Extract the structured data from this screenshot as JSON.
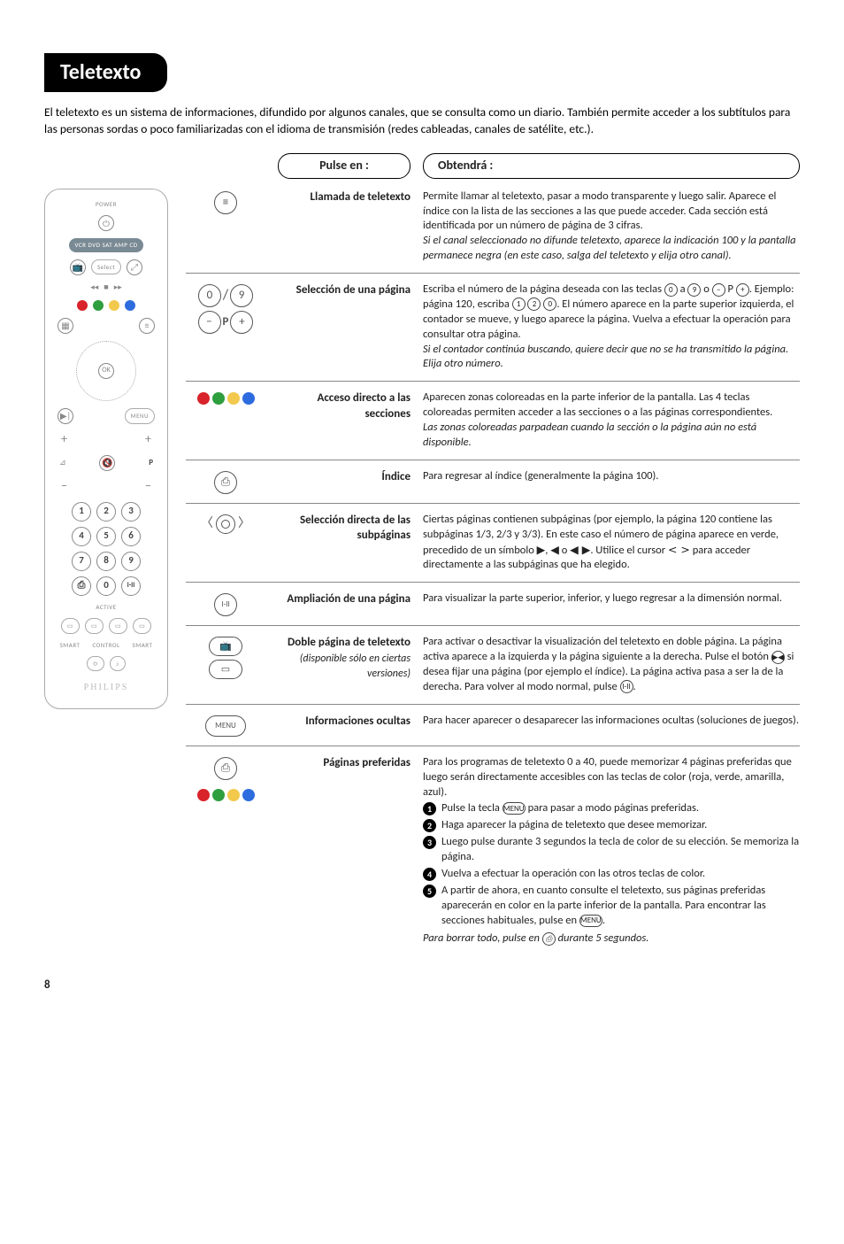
{
  "title": "Teletexto",
  "intro": "El teletexto es un sistema de informaciones, difundido por algunos canales, que se consulta como un diario. También permite acceder a los subtítulos para las personas sordas o poco familiarizadas con el idioma de transmisión (redes cableadas, canales de satélite, etc.).",
  "headers": {
    "pulse": "Pulse en :",
    "obtendra": "Obtendrá :"
  },
  "rows": [
    {
      "id": "llamada",
      "label": "Llamada de teletexto",
      "desc_html": "Permite llamar al teletexto, pasar a modo transparente y luego salir. Aparece el índice con la lista de las secciones a las que puede acceder. Cada sección está identificada por un número de página de 3 cifras.<br><i>Si el canal seleccionado no difunde teletexto, aparece la indicación 100 y la pantalla permanece negra (en este caso, salga del teletexto y elija otro canal).</i>"
    },
    {
      "id": "seleccion",
      "label": "Selección de una página",
      "desc_html": "Escriba el número de la página deseada con las teclas <span class='inline-ic'>0</span> a <span class='inline-ic'>9</span> o <span class='inline-ic'>−</span> P <span class='inline-ic'>+</span>. Ejemplo: página 120, escriba <span class='inline-ic'>1</span> <span class='inline-ic'>2</span> <span class='inline-ic'>0</span>. El número aparece en la parte superior izquierda, el contador se mueve, y luego aparece la página. Vuelva a efectuar la operación para consultar otra página.<br><i>Si el contador continúa buscando, quiere decir que no se ha transmitido la página. Elija otro número.</i>"
    },
    {
      "id": "acceso",
      "label": "Acceso directo a las secciones",
      "desc_html": "Aparecen zonas coloreadas en la parte inferior de la pantalla. Las 4 teclas coloreadas permiten acceder a las secciones o a las páginas correspondientes.<br><i>Las zonas coloreadas parpadean cuando la sección o la página aún no está disponible.</i>"
    },
    {
      "id": "indice",
      "label": "Índice",
      "desc_html": "Para regresar al índice (generalmente la página 100)."
    },
    {
      "id": "subpag",
      "label": "Selección directa de las subpáginas",
      "desc_html": "Ciertas páginas contienen subpáginas (por ejemplo, la página 120 contiene las subpáginas 1/3, 2/3 y 3/3). En este caso el número de página aparece en verde, precedido de un símbolo <span class='sym'>▶</span>, <span class='sym'>◀</span> o <span class='sym'>◀ ▶</span>. Utilice el cursor <span class='sym'>&lt; &gt;</span> para acceder directamente a las subpáginas que ha elegido."
    },
    {
      "id": "ampli",
      "label": "Ampliación de una página",
      "desc_html": "Para visualizar la parte superior, inferior, y luego regresar a la dimensión normal."
    },
    {
      "id": "doble",
      "label": "Doble página de teletexto",
      "sublabel": "(disponible sólo en ciertas versiones)",
      "desc_html": "Para activar o desactivar la visualización del teletexto en doble página. La página activa aparece a la izquierda y la página siguiente a la derecha. Pulse el botón <span class='inline-ic'>▶◀</span> si desea fijar una página (por ejemplo el índice). La página activa pasa a ser la de la derecha. Para volver al modo normal, pulse <span class='inline-ic'>I-II</span>."
    },
    {
      "id": "info",
      "label": "Informaciones ocultas",
      "desc_html": "Para hacer aparecer o desaparecer las informaciones ocultas (soluciones de juegos)."
    },
    {
      "id": "pref",
      "label": "Páginas preferidas",
      "desc_html": "Para los programas de teletexto 0 a 40, puede memorizar 4 páginas preferidas que luego serán directamente accesibles con las teclas de color (roja, verde, amarilla, azul).",
      "steps": [
        "Pulse la tecla <span class='inline-ic wide'>MENU</span> para pasar a modo páginas preferidas.",
        "Haga aparecer la página de teletexto que desee memorizar.",
        "Luego pulse durante 3 segundos la tecla de color de su elección. Se memoriza la página.",
        "Vuelva a efectuar la operación con las otros teclas de color.",
        "A partir de ahora, en cuanto consulte el teletexto, sus páginas preferidas aparecerán en color en la parte inferior de la pantalla. Para encontrar las secciones habituales, pulse en <span class='inline-ic wide'>MENU</span>."
      ],
      "footer": "Para borrar todo, pulse en <span class='inline-ic'>⎙</span> durante 5 segundos."
    }
  ],
  "colors": {
    "red": "#d8232a",
    "green": "#2e9e3f",
    "yellow": "#f2c94c",
    "blue": "#2d6cdf"
  },
  "page_number": "8",
  "remote": {
    "label_power": "POWER",
    "label_src": "VCR DVD SAT AMP CD",
    "label_select": "Select",
    "label_ok": "OK",
    "label_menu": "MENU",
    "label_p": "P",
    "label_active": "ACTIVE",
    "label_smart": "SMART",
    "label_control": "CONTROL",
    "brand": "PHILIPS"
  }
}
